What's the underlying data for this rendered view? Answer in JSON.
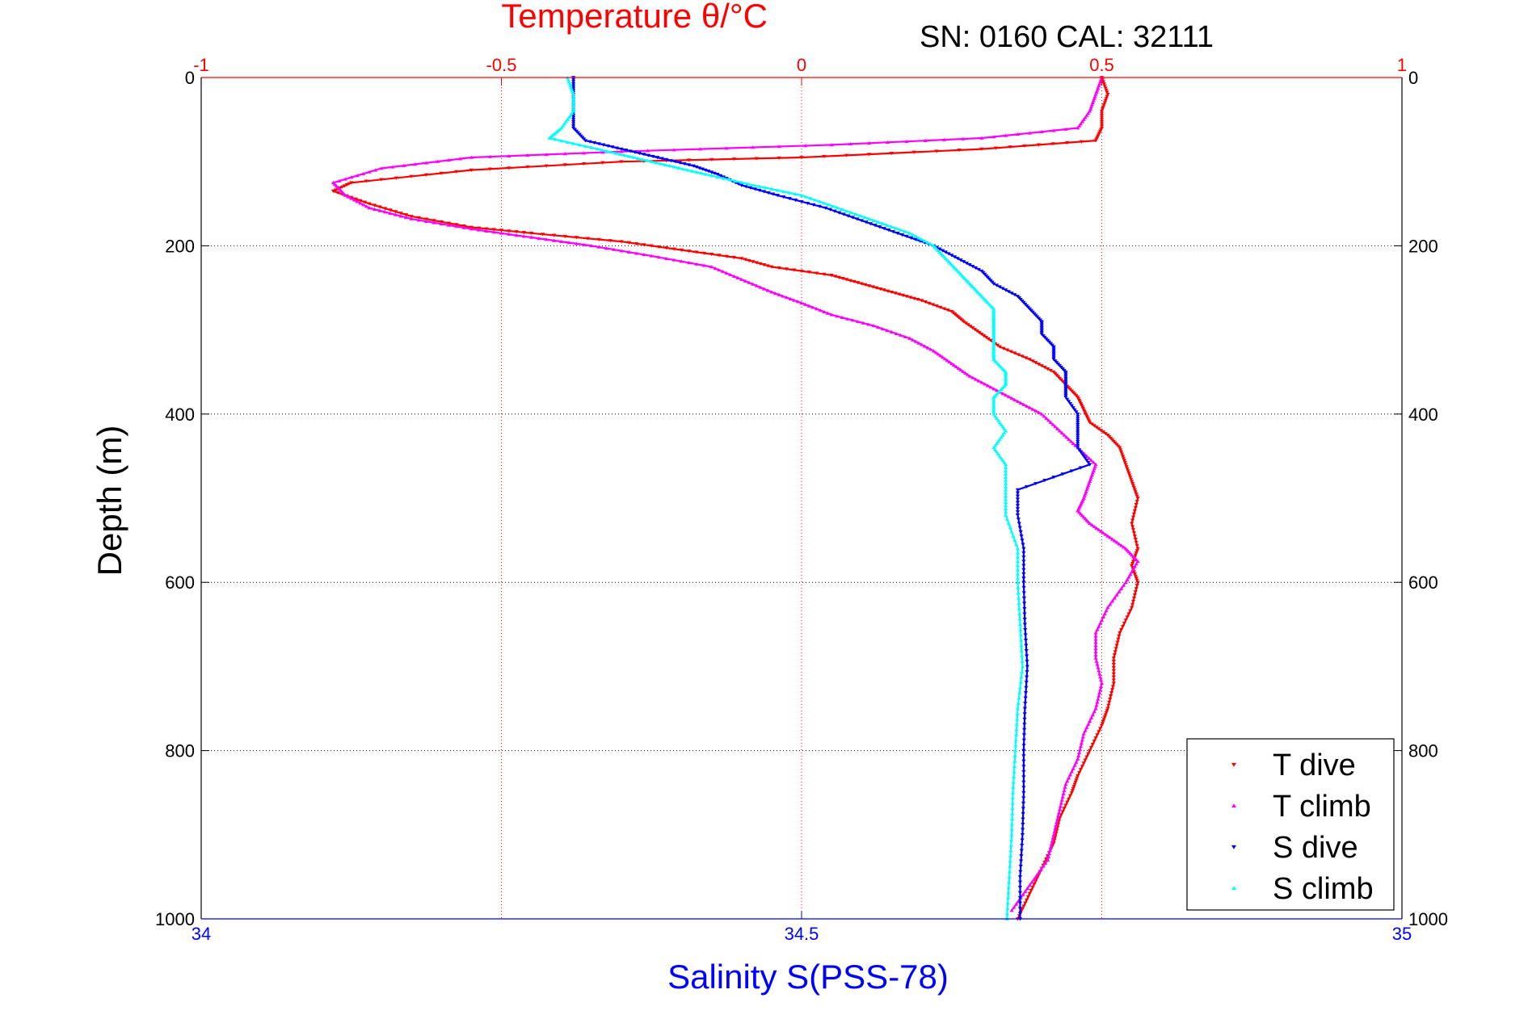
{
  "colors": {
    "t_dive": "#ff0000",
    "t_climb": "#ff00ff",
    "s_dive": "#0000ff",
    "s_climb": "#00ffff",
    "grid_t": "#ff0000",
    "grid_d": "#000000"
  },
  "annotation": "SN: 0160  CAL: 32111",
  "chart_data": {
    "type": "scatter",
    "title": "Temperature θ/°C",
    "xlabel_top": "Temperature θ/°C",
    "xlabel_bottom": "Salinity S(PSS-78)",
    "ylabel": "Depth (m)",
    "xlim_top": [
      -1,
      1
    ],
    "xlim_bottom": [
      34,
      35
    ],
    "ylim": [
      0,
      1000
    ],
    "y_reversed": true,
    "x_top_ticks": [
      "-1",
      "-0.5",
      "0",
      "0.5",
      "1"
    ],
    "x_bottom_ticks": [
      "34",
      "34.5",
      "35"
    ],
    "y_ticks": [
      "0",
      "200",
      "400",
      "600",
      "800",
      "1000"
    ],
    "grid": true,
    "legend_position": "bottom-right",
    "legend": [
      "T dive",
      "T climb",
      "S dive",
      "S climb"
    ],
    "series": [
      {
        "name": "T dive",
        "axis": "top",
        "marker": "triangle-down",
        "points": [
          [
            0.5,
            0
          ],
          [
            0.51,
            20
          ],
          [
            0.5,
            40
          ],
          [
            0.5,
            60
          ],
          [
            0.49,
            75
          ],
          [
            0.3,
            85
          ],
          [
            0.0,
            95
          ],
          [
            -0.3,
            100
          ],
          [
            -0.55,
            110
          ],
          [
            -0.75,
            125
          ],
          [
            -0.78,
            135
          ],
          [
            -0.72,
            150
          ],
          [
            -0.65,
            165
          ],
          [
            -0.55,
            178
          ],
          [
            -0.45,
            185
          ],
          [
            -0.3,
            195
          ],
          [
            -0.2,
            205
          ],
          [
            -0.1,
            215
          ],
          [
            -0.05,
            225
          ],
          [
            0.05,
            235
          ],
          [
            0.1,
            245
          ],
          [
            0.15,
            255
          ],
          [
            0.2,
            265
          ],
          [
            0.25,
            278
          ],
          [
            0.27,
            290
          ],
          [
            0.3,
            305
          ],
          [
            0.33,
            320
          ],
          [
            0.38,
            335
          ],
          [
            0.42,
            350
          ],
          [
            0.44,
            365
          ],
          [
            0.46,
            380
          ],
          [
            0.47,
            395
          ],
          [
            0.48,
            410
          ],
          [
            0.51,
            425
          ],
          [
            0.53,
            440
          ],
          [
            0.54,
            460
          ],
          [
            0.55,
            480
          ],
          [
            0.56,
            500
          ],
          [
            0.55,
            530
          ],
          [
            0.56,
            560
          ],
          [
            0.55,
            580
          ],
          [
            0.56,
            600
          ],
          [
            0.55,
            630
          ],
          [
            0.53,
            660
          ],
          [
            0.52,
            690
          ],
          [
            0.52,
            720
          ],
          [
            0.51,
            750
          ],
          [
            0.5,
            770
          ],
          [
            0.48,
            800
          ],
          [
            0.46,
            830
          ],
          [
            0.45,
            850
          ],
          [
            0.43,
            880
          ],
          [
            0.42,
            910
          ],
          [
            0.4,
            940
          ],
          [
            0.38,
            970
          ],
          [
            0.36,
            1000
          ]
        ]
      },
      {
        "name": "T climb",
        "axis": "top",
        "marker": "triangle-up",
        "points": [
          [
            0.5,
            0
          ],
          [
            0.49,
            20
          ],
          [
            0.48,
            40
          ],
          [
            0.46,
            60
          ],
          [
            0.3,
            72
          ],
          [
            0.05,
            80
          ],
          [
            -0.3,
            88
          ],
          [
            -0.55,
            95
          ],
          [
            -0.7,
            108
          ],
          [
            -0.78,
            125
          ],
          [
            -0.76,
            140
          ],
          [
            -0.72,
            155
          ],
          [
            -0.65,
            168
          ],
          [
            -0.55,
            180
          ],
          [
            -0.45,
            190
          ],
          [
            -0.35,
            200
          ],
          [
            -0.25,
            212
          ],
          [
            -0.15,
            225
          ],
          [
            -0.1,
            240
          ],
          [
            -0.05,
            255
          ],
          [
            0.0,
            268
          ],
          [
            0.05,
            282
          ],
          [
            0.12,
            295
          ],
          [
            0.18,
            310
          ],
          [
            0.22,
            325
          ],
          [
            0.25,
            340
          ],
          [
            0.28,
            355
          ],
          [
            0.32,
            370
          ],
          [
            0.36,
            385
          ],
          [
            0.4,
            400
          ],
          [
            0.43,
            420
          ],
          [
            0.46,
            440
          ],
          [
            0.49,
            460
          ],
          [
            0.48,
            480
          ],
          [
            0.47,
            500
          ],
          [
            0.46,
            515
          ],
          [
            0.48,
            530
          ],
          [
            0.51,
            545
          ],
          [
            0.54,
            560
          ],
          [
            0.56,
            575
          ],
          [
            0.54,
            600
          ],
          [
            0.51,
            630
          ],
          [
            0.49,
            660
          ],
          [
            0.49,
            690
          ],
          [
            0.5,
            720
          ],
          [
            0.49,
            750
          ],
          [
            0.47,
            780
          ],
          [
            0.46,
            810
          ],
          [
            0.44,
            840
          ],
          [
            0.43,
            870
          ],
          [
            0.42,
            900
          ],
          [
            0.41,
            930
          ],
          [
            0.38,
            960
          ],
          [
            0.35,
            990
          ]
        ]
      },
      {
        "name": "S dive",
        "axis": "bottom",
        "marker": "triangle-down",
        "points": [
          [
            34.31,
            0
          ],
          [
            34.31,
            20
          ],
          [
            34.31,
            40
          ],
          [
            34.31,
            60
          ],
          [
            34.32,
            75
          ],
          [
            34.35,
            85
          ],
          [
            34.38,
            95
          ],
          [
            34.41,
            105
          ],
          [
            34.43,
            115
          ],
          [
            34.45,
            128
          ],
          [
            34.48,
            140
          ],
          [
            34.52,
            155
          ],
          [
            34.55,
            170
          ],
          [
            34.58,
            185
          ],
          [
            34.61,
            200
          ],
          [
            34.63,
            215
          ],
          [
            34.65,
            230
          ],
          [
            34.66,
            245
          ],
          [
            34.68,
            260
          ],
          [
            34.69,
            275
          ],
          [
            34.7,
            290
          ],
          [
            34.7,
            305
          ],
          [
            34.71,
            320
          ],
          [
            34.71,
            335
          ],
          [
            34.72,
            350
          ],
          [
            34.72,
            365
          ],
          [
            34.72,
            380
          ],
          [
            34.73,
            400
          ],
          [
            34.73,
            420
          ],
          [
            34.73,
            440
          ],
          [
            34.74,
            460
          ],
          [
            34.68,
            490
          ],
          [
            34.68,
            520
          ],
          [
            34.685,
            560
          ],
          [
            34.685,
            600
          ],
          [
            34.686,
            650
          ],
          [
            34.688,
            700
          ],
          [
            34.686,
            750
          ],
          [
            34.685,
            800
          ],
          [
            34.685,
            850
          ],
          [
            34.684,
            900
          ],
          [
            34.682,
            950
          ],
          [
            34.682,
            1000
          ]
        ]
      },
      {
        "name": "S climb",
        "axis": "bottom",
        "marker": "triangle-up",
        "points": [
          [
            34.305,
            0
          ],
          [
            34.31,
            20
          ],
          [
            34.31,
            40
          ],
          [
            34.3,
            60
          ],
          [
            34.29,
            72
          ],
          [
            34.33,
            85
          ],
          [
            34.36,
            95
          ],
          [
            34.39,
            105
          ],
          [
            34.42,
            115
          ],
          [
            34.46,
            128
          ],
          [
            34.5,
            140
          ],
          [
            34.53,
            155
          ],
          [
            34.56,
            170
          ],
          [
            34.59,
            185
          ],
          [
            34.61,
            200
          ],
          [
            34.62,
            215
          ],
          [
            34.63,
            230
          ],
          [
            34.64,
            245
          ],
          [
            34.65,
            260
          ],
          [
            34.66,
            275
          ],
          [
            34.66,
            290
          ],
          [
            34.66,
            305
          ],
          [
            34.66,
            320
          ],
          [
            34.66,
            335
          ],
          [
            34.67,
            350
          ],
          [
            34.67,
            365
          ],
          [
            34.66,
            380
          ],
          [
            34.66,
            400
          ],
          [
            34.67,
            420
          ],
          [
            34.66,
            440
          ],
          [
            34.67,
            460
          ],
          [
            34.67,
            490
          ],
          [
            34.67,
            520
          ],
          [
            34.68,
            560
          ],
          [
            34.68,
            600
          ],
          [
            34.682,
            650
          ],
          [
            34.684,
            700
          ],
          [
            34.68,
            750
          ],
          [
            34.678,
            800
          ],
          [
            34.676,
            850
          ],
          [
            34.675,
            900
          ],
          [
            34.673,
            950
          ],
          [
            34.671,
            1000
          ]
        ]
      }
    ]
  }
}
